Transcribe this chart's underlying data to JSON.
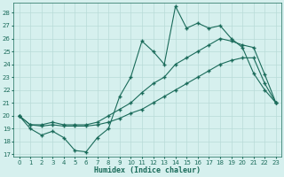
{
  "xlabel": "Humidex (Indice chaleur)",
  "x": [
    0,
    1,
    2,
    3,
    4,
    5,
    6,
    7,
    8,
    9,
    10,
    11,
    12,
    13,
    14,
    15,
    16,
    17,
    18,
    19,
    20,
    21,
    22,
    23
  ],
  "line_main": [
    20,
    19,
    18.5,
    18.8,
    18.3,
    17.3,
    17.2,
    18.3,
    19.0,
    21.5,
    23.0,
    25.8,
    25.0,
    24.0,
    28.5,
    26.8,
    27.2,
    26.8,
    27.0,
    26.0,
    25.3,
    23.3,
    22.0,
    21.0
  ],
  "line_upper": [
    20.0,
    19.3,
    19.3,
    19.5,
    19.3,
    19.3,
    19.3,
    19.5,
    20.0,
    20.5,
    21.0,
    21.8,
    22.5,
    23.0,
    24.0,
    24.5,
    25.0,
    25.5,
    26.0,
    25.8,
    25.5,
    25.3,
    23.2,
    21.0
  ],
  "line_lower": [
    20.0,
    19.3,
    19.2,
    19.3,
    19.2,
    19.2,
    19.2,
    19.3,
    19.5,
    19.8,
    20.2,
    20.5,
    21.0,
    21.5,
    22.0,
    22.5,
    23.0,
    23.5,
    24.0,
    24.3,
    24.5,
    24.5,
    22.5,
    21.0
  ],
  "line_color": "#1a6b5a",
  "bg_color": "#d6f0ee",
  "grid_color": "#b8dbd8",
  "ylim_min": 16.8,
  "ylim_max": 28.8,
  "yticks": [
    17,
    18,
    19,
    20,
    21,
    22,
    23,
    24,
    25,
    26,
    27,
    28
  ],
  "xticks": [
    0,
    1,
    2,
    3,
    4,
    5,
    6,
    7,
    8,
    9,
    10,
    11,
    12,
    13,
    14,
    15,
    16,
    17,
    18,
    19,
    20,
    21,
    22,
    23
  ]
}
